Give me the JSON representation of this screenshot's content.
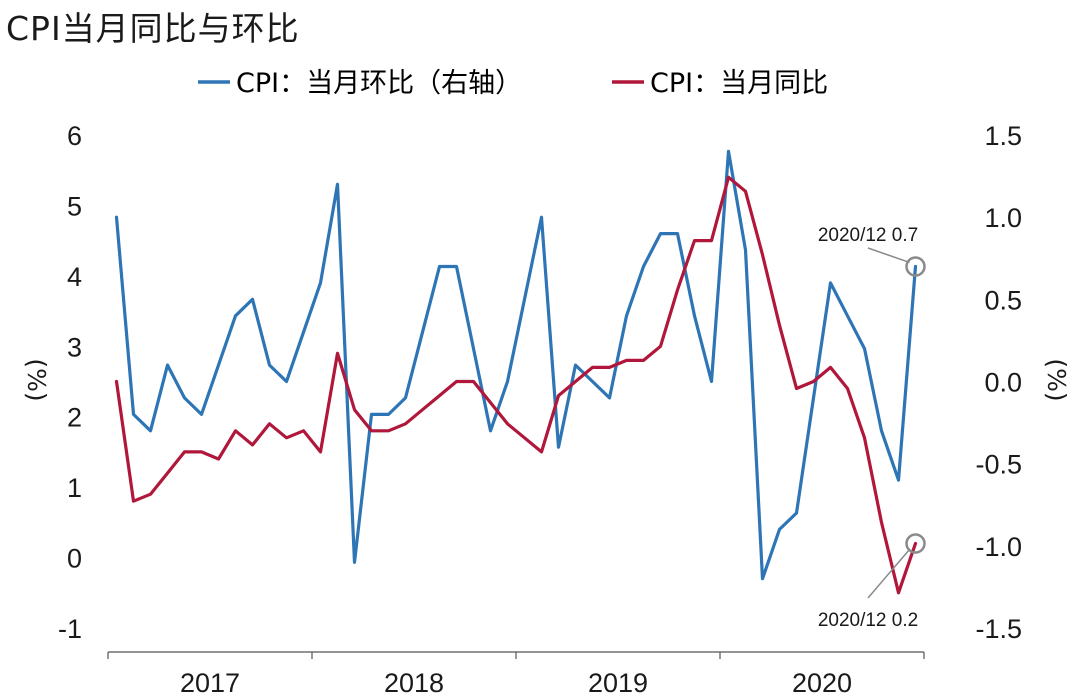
{
  "chart_data": {
    "type": "line",
    "title": "CPI当月同比与环比",
    "x": [
      "2017-01",
      "2017-02",
      "2017-03",
      "2017-04",
      "2017-05",
      "2017-06",
      "2017-07",
      "2017-08",
      "2017-09",
      "2017-10",
      "2017-11",
      "2017-12",
      "2018-01",
      "2018-02",
      "2018-03",
      "2018-04",
      "2018-05",
      "2018-06",
      "2018-07",
      "2018-08",
      "2018-09",
      "2018-10",
      "2018-11",
      "2018-12",
      "2019-01",
      "2019-02",
      "2019-03",
      "2019-04",
      "2019-05",
      "2019-06",
      "2019-07",
      "2019-08",
      "2019-09",
      "2019-10",
      "2019-11",
      "2019-12",
      "2020-01",
      "2020-02",
      "2020-03",
      "2020-04",
      "2020-05",
      "2020-06",
      "2020-07",
      "2020-08",
      "2020-09",
      "2020-10",
      "2020-11",
      "2020-12"
    ],
    "x_tick_labels": [
      "2017",
      "2018",
      "2019",
      "2020"
    ],
    "series": [
      {
        "name": "CPI：当月环比（右轴）",
        "axis": "right",
        "color": "#2e75b6",
        "values": [
          1.0,
          -0.2,
          -0.3,
          0.1,
          -0.1,
          -0.2,
          0.1,
          0.4,
          0.5,
          0.1,
          0.0,
          0.3,
          0.6,
          1.2,
          -1.1,
          -0.2,
          -0.2,
          -0.1,
          0.3,
          0.7,
          0.7,
          0.2,
          -0.3,
          0.0,
          0.5,
          1.0,
          -0.4,
          0.1,
          0.0,
          -0.1,
          0.4,
          0.7,
          0.9,
          0.9,
          0.4,
          0.0,
          1.4,
          0.8,
          -1.2,
          -0.9,
          -0.8,
          -0.1,
          0.6,
          0.4,
          0.2,
          -0.3,
          -0.6,
          0.7
        ]
      },
      {
        "name": "CPI：当月同比",
        "axis": "left",
        "color": "#b0173a",
        "values": [
          2.5,
          0.8,
          0.9,
          1.2,
          1.5,
          1.5,
          1.4,
          1.8,
          1.6,
          1.9,
          1.7,
          1.8,
          1.5,
          2.9,
          2.1,
          1.8,
          1.8,
          1.9,
          2.1,
          2.3,
          2.5,
          2.5,
          2.2,
          1.9,
          1.7,
          1.5,
          2.3,
          2.5,
          2.7,
          2.7,
          2.8,
          2.8,
          3.0,
          3.8,
          4.5,
          4.5,
          5.4,
          5.2,
          4.3,
          3.3,
          2.4,
          2.5,
          2.7,
          2.4,
          1.7,
          0.5,
          -0.5,
          0.2
        ]
      }
    ],
    "y_left": {
      "label": "(%)",
      "lim": [
        -1,
        6
      ],
      "ticks": [
        "-1",
        "0",
        "1",
        "2",
        "3",
        "4",
        "5",
        "6"
      ]
    },
    "y_right": {
      "label": "(%)",
      "lim": [
        -1.5,
        1.5
      ],
      "ticks": [
        "-1.5",
        "-1.0",
        "-0.5",
        "0.0",
        "0.5",
        "1.0",
        "1.5"
      ]
    },
    "legend_position": "top",
    "annotations": [
      {
        "text": "2020/12 0.7",
        "series": "CPI：当月环比（右轴）",
        "x": "2020-12",
        "value": 0.7
      },
      {
        "text": "2020/12 0.2",
        "series": "CPI：当月同比",
        "x": "2020-12",
        "value": 0.2
      }
    ],
    "grid": false
  }
}
